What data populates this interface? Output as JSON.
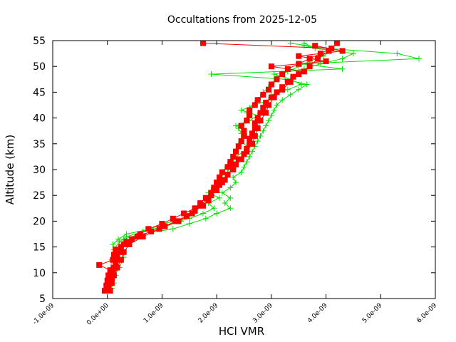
{
  "chart_data": {
    "type": "scatter",
    "title": "Occultations from 2025-12-05",
    "xlabel": "HCl VMR",
    "ylabel": "Altitude (km)",
    "xlim": [
      -1e-09,
      6e-09
    ],
    "ylim": [
      5,
      55
    ],
    "x_ticks": [
      "-1.0e-09",
      "0.0e+00",
      "1.0e-09",
      "2.0e-09",
      "3.0e-09",
      "4.0e-09",
      "5.0e-09",
      "6.0e-09"
    ],
    "y_ticks": [
      "5",
      "10",
      "15",
      "20",
      "25",
      "30",
      "35",
      "40",
      "45",
      "50",
      "55"
    ],
    "grid": false,
    "legend": "none",
    "series": [
      {
        "color": "#00e000",
        "marker": "plus",
        "profiles": [
          {
            "altitude": [
              6.5,
              8,
              9.5,
              11,
              12.5,
              14,
              15.5,
              16.5,
              17.5,
              18.5,
              19.5,
              20.5,
              21.5,
              22.5,
              23.5,
              24.5,
              25.5,
              26.5,
              27.5,
              28.5,
              29.5,
              30.5,
              31.5,
              32.5,
              33.5,
              34.5,
              35.5,
              36.5,
              37.5,
              38.5,
              39.5,
              40.5,
              41.5,
              42.5,
              43.5,
              44.5,
              45.5,
              46.5,
              47.5,
              48.5,
              49.5,
              50.5,
              51.5,
              52.5,
              53.5,
              54.5
            ],
            "vmr": [
              5e-11,
              1.2e-10,
              1.5e-10,
              1.8e-10,
              1e-10,
              1.5e-10,
              1e-10,
              2e-10,
              3.5e-10,
              8e-10,
              1e-09,
              1.5e-09,
              1.75e-09,
              1.95e-09,
              1.85e-09,
              2.05e-09,
              1.85e-09,
              1.95e-09,
              2.1e-09,
              2.05e-09,
              2.2e-09,
              2.25e-09,
              2.3e-09,
              2.35e-09,
              2.5e-09,
              2.55e-09,
              2.45e-09,
              2.55e-09,
              2.5e-09,
              2.35e-09,
              2.6e-09,
              2.75e-09,
              2.45e-09,
              2.7e-09,
              2.95e-09,
              3e-09,
              3.3e-09,
              3.55e-09,
              3.35e-09,
              3.05e-09,
              3.6e-09,
              3.9e-09,
              4.3e-09,
              4.5e-09,
              3.8e-09,
              3.6e-09
            ]
          },
          {
            "altitude": [
              7,
              9,
              11,
              13,
              15,
              16.5,
              17.5,
              18.5,
              19.5,
              20.5,
              21.5,
              22.5,
              23.5,
              24.5,
              25.5,
              26.5,
              27.5,
              28.5,
              29.5,
              30.5,
              31.5,
              32.5,
              33.5,
              34.5,
              35.5,
              36.5,
              37.5,
              38.5,
              39.5,
              40.5,
              41.5,
              42.5,
              43.5,
              44.5,
              45.5,
              46.5,
              47.5,
              48.5,
              49.5,
              50.5,
              51.5,
              52.5,
              53.5,
              54.5
            ],
            "vmr": [
              8e-11,
              1e-10,
              2.2e-10,
              3e-10,
              2.5e-10,
              3e-10,
              6e-10,
              1.2e-09,
              1.5e-09,
              1.8e-09,
              2e-09,
              2.25e-09,
              2.15e-09,
              2.25e-09,
              2.1e-09,
              2.25e-09,
              2.35e-09,
              2.3e-09,
              2.45e-09,
              2.5e-09,
              2.55e-09,
              2.6e-09,
              2.65e-09,
              2.7e-09,
              2.75e-09,
              2.8e-09,
              2.85e-09,
              2.9e-09,
              2.95e-09,
              3e-09,
              3.05e-09,
              3.1e-09,
              3.2e-09,
              3.35e-09,
              3.5e-09,
              3.65e-09,
              3.25e-09,
              1.9e-09,
              4.3e-09,
              3.55e-09,
              5.7e-09,
              5.3e-09,
              4e-09,
              3.35e-09
            ]
          },
          {
            "altitude": [
              6.5,
              8.5,
              10.5,
              12.5,
              14.5,
              16,
              17,
              18,
              19,
              20,
              21,
              22,
              23,
              24,
              25,
              26,
              27,
              28,
              29,
              30,
              31,
              32,
              33,
              34,
              35,
              36,
              37,
              38,
              39,
              40,
              41,
              42,
              43,
              44,
              45,
              46,
              47,
              48,
              49,
              50,
              51,
              52,
              53,
              54
            ],
            "vmr": [
              -2e-11,
              2e-11,
              5e-11,
              8e-11,
              1.2e-10,
              2.2e-10,
              3.5e-10,
              6.5e-10,
              1.05e-09,
              1.35e-09,
              1.5e-09,
              1.6e-09,
              1.7e-09,
              1.8e-09,
              1.85e-09,
              1.9e-09,
              2e-09,
              2.05e-09,
              2.1e-09,
              2.15e-09,
              2.2e-09,
              2.3e-09,
              2.35e-09,
              2.4e-09,
              2.4e-09,
              2.45e-09,
              2.45e-09,
              2.4e-09,
              2.5e-09,
              2.55e-09,
              2.55e-09,
              2.6e-09,
              2.7e-09,
              2.8e-09,
              2.85e-09,
              2.95e-09,
              3.05e-09,
              3.1e-09,
              3.3e-09,
              3.5e-09,
              3.7e-09,
              3.95e-09,
              4.1e-09,
              3.6e-09
            ]
          }
        ]
      },
      {
        "color": "#ff0000",
        "marker": "square",
        "profiles": [
          {
            "altitude": [
              6.5,
              7.5,
              8.5,
              9.5,
              10.5,
              11.5,
              12.5,
              13.5,
              14.5,
              15.5,
              16.5,
              17.5,
              18.5,
              19.5,
              20.5,
              21.5,
              22.5,
              23.5,
              24.5,
              25.5,
              26.5,
              27.5,
              28.5,
              29.5,
              30.5,
              31.5,
              32.5,
              33.5,
              34.5,
              35.5,
              36.5,
              37.5,
              38.5,
              39.5,
              40.5,
              41.5,
              42.5,
              43.5,
              44.5,
              45.5,
              46.5,
              47.5,
              48.5,
              49.5,
              50.5,
              51.5,
              52.5,
              53.5,
              54.5
            ],
            "vmr": [
              -5e-11,
              -2e-11,
              0.0,
              2e-11,
              5e-11,
              -1.5e-10,
              1e-10,
              1.2e-10,
              1.5e-10,
              3e-10,
              4.5e-10,
              6e-10,
              7.5e-10,
              1e-09,
              1.2e-09,
              1.4e-09,
              1.6e-09,
              1.7e-09,
              1.8e-09,
              1.9e-09,
              1.95e-09,
              2e-09,
              2.05e-09,
              2.1e-09,
              2.2e-09,
              2.25e-09,
              2.3e-09,
              2.35e-09,
              2.4e-09,
              2.45e-09,
              2.5e-09,
              2.5e-09,
              2.45e-09,
              2.55e-09,
              2.6e-09,
              2.6e-09,
              2.7e-09,
              2.75e-09,
              2.85e-09,
              2.95e-09,
              3e-09,
              3.1e-09,
              3.2e-09,
              3.3e-09,
              3.5e-09,
              3.7e-09,
              3.9e-09,
              4.1e-09,
              1.75e-09
            ]
          },
          {
            "altitude": [
              7,
              8,
              9,
              10,
              11,
              12,
              13,
              14,
              15,
              16,
              17,
              18,
              19,
              20,
              21,
              22,
              23,
              24,
              25,
              26,
              27,
              28,
              29,
              30,
              31,
              32,
              33,
              34,
              35,
              36,
              37,
              38,
              39,
              40,
              41,
              42,
              43,
              44,
              45,
              46,
              47,
              48,
              49,
              50,
              51,
              52,
              53,
              54
            ],
            "vmr": [
              2e-11,
              5e-11,
              8e-11,
              1e-10,
              1.2e-10,
              1.5e-10,
              1.8e-10,
              2e-10,
              2.5e-10,
              3.5e-10,
              5.5e-10,
              8e-10,
              1.05e-09,
              1.25e-09,
              1.45e-09,
              1.6e-09,
              1.75e-09,
              1.85e-09,
              1.9e-09,
              2e-09,
              2.05e-09,
              2.15e-09,
              2.2e-09,
              2.3e-09,
              2.35e-09,
              2.4e-09,
              2.5e-09,
              2.55e-09,
              2.6e-09,
              2.6e-09,
              2.65e-09,
              2.7e-09,
              2.7e-09,
              2.75e-09,
              2.8e-09,
              2.85e-09,
              2.9e-09,
              3e-09,
              3.1e-09,
              3.2e-09,
              3.3e-09,
              3.4e-09,
              3.6e-09,
              3e-09,
              4e-09,
              3.5e-09,
              4.3e-09,
              3.8e-09
            ]
          },
          {
            "altitude": [
              6.5,
              8,
              9.5,
              11,
              12.5,
              14,
              15.5,
              17,
              18.5,
              20,
              21.5,
              23,
              24.5,
              26,
              27.5,
              29,
              30.5,
              32,
              33.5,
              35,
              36.5,
              38,
              39.5,
              41,
              42.5,
              44,
              45.5,
              47,
              48.5,
              50,
              51.5,
              53,
              54.5
            ],
            "vmr": [
              5e-11,
              8e-11,
              1.2e-10,
              1.8e-10,
              2.5e-10,
              3e-10,
              4e-10,
              6.5e-10,
              9.5e-10,
              1.3e-09,
              1.55e-09,
              1.7e-09,
              1.85e-09,
              2e-09,
              2.1e-09,
              2.2e-09,
              2.3e-09,
              2.45e-09,
              2.55e-09,
              2.65e-09,
              2.7e-09,
              2.75e-09,
              2.8e-09,
              2.9e-09,
              2.95e-09,
              3.05e-09,
              3.2e-09,
              3.35e-09,
              3.5e-09,
              3.7e-09,
              3.85e-09,
              4.05e-09,
              4.2e-09
            ]
          }
        ]
      }
    ]
  }
}
